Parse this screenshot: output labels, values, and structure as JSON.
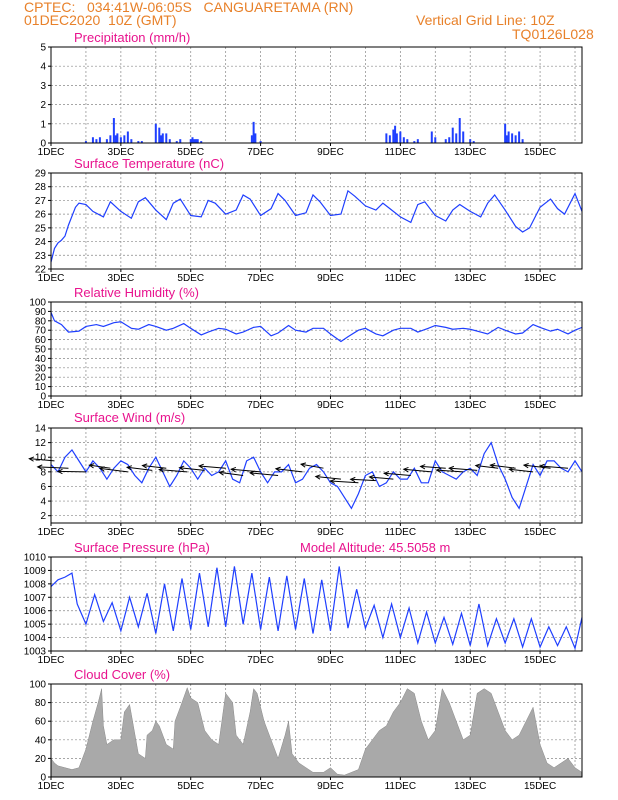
{
  "header": {
    "line1": "CPTEC:   034:41W-06:05S   CANGUARETAMA (RN)",
    "line2": "01DEC2020  10Z (GMT)",
    "grid_note": "Vertical Grid Line: 10Z",
    "code": "TQ0126L028",
    "title_color": "#e8812a"
  },
  "x_ticks": [
    "1DEC",
    "3DEC",
    "5DEC",
    "7DEC",
    "9DEC",
    "11DEC",
    "13DEC",
    "15DEC"
  ],
  "x_day_labels": [
    1,
    3,
    5,
    7,
    9,
    11,
    13,
    15
  ],
  "x_range_days": [
    1,
    16.2
  ],
  "panels": [
    {
      "id": "precip",
      "title": "Precipitation (mm/h)",
      "type": "bar",
      "ylim": [
        0,
        5
      ],
      "y_ticks": [
        "0",
        "1",
        "2",
        "3",
        "4",
        "5"
      ],
      "y_tick_values": [
        0,
        1,
        2,
        3,
        4,
        5
      ],
      "color": "#1f3fff",
      "chart_data": {
        "type": "bar",
        "title": "Precipitation (mm/h)",
        "ylim": [
          0,
          5
        ],
        "x_day": [
          2.0,
          2.2,
          2.3,
          2.4,
          2.6,
          2.7,
          2.8,
          2.85,
          2.9,
          3.0,
          3.1,
          3.2,
          3.3,
          3.5,
          3.6,
          4.0,
          4.1,
          4.15,
          4.2,
          4.3,
          4.4,
          4.6,
          4.7,
          5.0,
          5.05,
          5.1,
          5.15,
          5.2,
          5.3,
          6.75,
          6.8,
          6.85,
          7.0,
          10.6,
          10.7,
          10.8,
          10.85,
          10.9,
          11.0,
          11.1,
          11.2,
          11.4,
          11.5,
          11.9,
          12.0,
          12.3,
          12.4,
          12.5,
          12.6,
          12.7,
          12.8,
          13.0,
          13.1,
          14.0,
          14.05,
          14.1,
          14.2,
          14.3,
          14.4,
          14.5
        ],
        "values": [
          0.1,
          0.3,
          0.2,
          0.3,
          0.2,
          0.4,
          1.3,
          0.4,
          0.5,
          0.3,
          0.4,
          0.6,
          0.2,
          0.1,
          0.1,
          1.0,
          0.8,
          0.4,
          0.5,
          0.5,
          0.2,
          0.1,
          0.2,
          0.2,
          0.3,
          0.2,
          0.2,
          0.2,
          0.1,
          0.4,
          1.1,
          0.5,
          0.1,
          0.5,
          0.4,
          0.7,
          0.9,
          0.5,
          0.6,
          0.3,
          0.2,
          0.1,
          0.2,
          0.6,
          0.3,
          0.2,
          0.3,
          0.8,
          0.5,
          1.3,
          0.6,
          0.2,
          0.1,
          1.0,
          0.4,
          0.6,
          0.5,
          0.4,
          0.6,
          0.2
        ]
      }
    },
    {
      "id": "temp",
      "title": "Surface Temperature (nC)",
      "type": "line",
      "ylim": [
        22,
        29
      ],
      "y_ticks": [
        "22",
        "23",
        "24",
        "25",
        "26",
        "27",
        "28",
        "29"
      ],
      "y_tick_values": [
        22,
        23,
        24,
        25,
        26,
        27,
        28,
        29
      ],
      "color": "#1f3fff",
      "chart_data": {
        "type": "line",
        "title": "Surface Temperature (nC)",
        "ylim": [
          22,
          29
        ],
        "x": [
          1.0,
          1.1,
          1.2,
          1.3,
          1.4,
          1.5,
          1.7,
          1.8,
          2.0,
          2.2,
          2.5,
          2.7,
          3.0,
          3.3,
          3.5,
          3.7,
          4.0,
          4.3,
          4.5,
          4.7,
          5.0,
          5.3,
          5.5,
          5.7,
          6.0,
          6.3,
          6.5,
          6.7,
          7.0,
          7.3,
          7.5,
          7.7,
          8.0,
          8.3,
          8.5,
          8.7,
          9.0,
          9.3,
          9.5,
          9.7,
          10.0,
          10.3,
          10.5,
          10.7,
          11.0,
          11.3,
          11.5,
          11.7,
          12.0,
          12.3,
          12.5,
          12.7,
          13.0,
          13.3,
          13.5,
          13.7,
          14.0,
          14.3,
          14.5,
          14.7,
          15.0,
          15.3,
          15.5,
          15.7,
          16.0,
          16.2
        ],
        "values": [
          22.5,
          23.5,
          23.9,
          24.1,
          24.4,
          25.2,
          26.5,
          26.8,
          26.7,
          26.2,
          25.8,
          26.9,
          26.2,
          25.7,
          26.9,
          27.2,
          26.3,
          25.6,
          26.8,
          27.1,
          25.9,
          25.8,
          27.0,
          26.8,
          26.0,
          26.3,
          27.4,
          27.1,
          25.9,
          26.4,
          27.5,
          27.0,
          25.9,
          26.1,
          27.4,
          26.9,
          25.9,
          26.0,
          27.7,
          27.3,
          26.6,
          26.3,
          26.8,
          26.4,
          25.8,
          25.4,
          26.7,
          26.9,
          25.9,
          25.5,
          26.3,
          26.7,
          26.2,
          25.8,
          26.8,
          27.4,
          26.3,
          25.1,
          24.7,
          25.0,
          26.5,
          27.1,
          26.4,
          26.0,
          27.5,
          26.2
        ]
      }
    },
    {
      "id": "rh",
      "title": "Relative Humidity (%)",
      "type": "line",
      "ylim": [
        0,
        100
      ],
      "y_ticks": [
        "0",
        "10",
        "20",
        "30",
        "40",
        "50",
        "60",
        "70",
        "80",
        "90",
        "100"
      ],
      "y_tick_values": [
        0,
        10,
        20,
        30,
        40,
        50,
        60,
        70,
        80,
        90,
        100
      ],
      "color": "#1f3fff",
      "chart_data": {
        "type": "line",
        "title": "Relative Humidity (%)",
        "ylim": [
          0,
          100
        ],
        "x": [
          1.0,
          1.1,
          1.3,
          1.5,
          1.8,
          2.0,
          2.3,
          2.5,
          2.8,
          3.0,
          3.3,
          3.5,
          3.8,
          4.0,
          4.3,
          4.5,
          4.8,
          5.0,
          5.3,
          5.5,
          5.8,
          6.0,
          6.3,
          6.5,
          6.8,
          7.0,
          7.3,
          7.5,
          7.8,
          8.0,
          8.3,
          8.5,
          8.8,
          9.0,
          9.3,
          9.5,
          9.8,
          10.0,
          10.3,
          10.5,
          10.8,
          11.0,
          11.3,
          11.5,
          11.8,
          12.0,
          12.3,
          12.5,
          12.8,
          13.0,
          13.3,
          13.5,
          13.8,
          14.0,
          14.3,
          14.5,
          14.8,
          15.0,
          15.3,
          15.5,
          15.8,
          16.0,
          16.2
        ],
        "values": [
          89,
          80,
          76,
          68,
          69,
          74,
          76,
          74,
          78,
          79,
          72,
          71,
          76,
          74,
          70,
          72,
          77,
          72,
          65,
          68,
          72,
          71,
          66,
          68,
          73,
          74,
          64,
          67,
          75,
          70,
          68,
          72,
          72,
          66,
          58,
          63,
          70,
          72,
          66,
          64,
          70,
          72,
          72,
          68,
          72,
          75,
          73,
          71,
          72,
          71,
          68,
          66,
          73,
          70,
          66,
          67,
          76,
          73,
          69,
          71,
          66,
          70,
          73
        ]
      }
    },
    {
      "id": "wind",
      "title": "Surface Wind (m/s)",
      "type": "line",
      "ylim": [
        1,
        14
      ],
      "y_ticks": [
        "2",
        "4",
        "6",
        "8",
        "10",
        "12",
        "14"
      ],
      "y_tick_values": [
        2,
        4,
        6,
        8,
        10,
        12,
        14
      ],
      "color": "#1f3fff",
      "arrow_color": "#000000",
      "chart_data": {
        "type": "line",
        "title": "Surface Wind (m/s)",
        "ylim": [
          1,
          14
        ],
        "x": [
          1.0,
          1.2,
          1.4,
          1.6,
          1.8,
          2.0,
          2.2,
          2.4,
          2.6,
          2.8,
          3.0,
          3.2,
          3.4,
          3.6,
          3.8,
          4.0,
          4.2,
          4.4,
          4.6,
          4.8,
          5.0,
          5.2,
          5.4,
          5.6,
          5.8,
          6.0,
          6.2,
          6.4,
          6.6,
          6.8,
          7.0,
          7.2,
          7.4,
          7.6,
          7.8,
          8.0,
          8.2,
          8.4,
          8.6,
          8.8,
          9.0,
          9.2,
          9.4,
          9.6,
          9.8,
          10.0,
          10.2,
          10.4,
          10.6,
          10.8,
          11.0,
          11.2,
          11.4,
          11.6,
          11.8,
          12.0,
          12.2,
          12.4,
          12.6,
          12.8,
          13.0,
          13.2,
          13.4,
          13.6,
          13.8,
          14.0,
          14.2,
          14.4,
          14.6,
          14.8,
          15.0,
          15.2,
          15.4,
          15.6,
          15.8,
          16.0,
          16.2
        ],
        "values": [
          9.0,
          8.0,
          10.0,
          11.0,
          9.5,
          8.0,
          9.5,
          8.5,
          7.0,
          8.5,
          9.5,
          9.0,
          7.5,
          6.5,
          8.5,
          10.0,
          8.0,
          6.0,
          7.5,
          9.5,
          8.5,
          7.0,
          8.5,
          7.5,
          8.0,
          9.5,
          7.0,
          6.5,
          9.5,
          10.0,
          8.0,
          6.5,
          8.0,
          8.0,
          9.0,
          6.5,
          7.0,
          8.5,
          9.0,
          8.0,
          6.5,
          6.0,
          4.5,
          3.0,
          5.0,
          7.5,
          8.0,
          6.0,
          6.5,
          8.0,
          7.0,
          7.0,
          8.5,
          6.5,
          6.5,
          9.5,
          8.0,
          7.5,
          7.0,
          8.0,
          8.5,
          7.5,
          10.5,
          12.0,
          9.0,
          7.0,
          4.5,
          3.0,
          6.0,
          9.0,
          7.5,
          9.5,
          9.5,
          8.5,
          8.0,
          9.5,
          8.0
        ],
        "arrow_x": [
          1.1,
          1.5,
          2.0,
          2.7,
          3.2,
          3.9,
          4.3,
          4.9,
          5.4,
          6.0,
          6.5,
          7.0,
          7.5,
          8.2,
          8.8,
          9.3,
          9.8,
          10.3,
          10.8,
          11.3,
          11.9,
          12.3,
          12.8,
          13.2,
          13.8,
          14.3,
          14.8,
          15.3,
          15.8
        ],
        "arrow_y": [
          9.5,
          8.5,
          8.0,
          8.5,
          8.0,
          8.2,
          8.5,
          8.0,
          8.2,
          8.5,
          7.5,
          8.0,
          7.5,
          8.0,
          8.5,
          7.0,
          6.5,
          6.8,
          7.0,
          7.5,
          8.0,
          8.5,
          8.0,
          8.2,
          8.5,
          8.5,
          8.0,
          8.5,
          8.5
        ],
        "arrow_u": [
          -1.8,
          -2.2,
          -2.0,
          -1.5,
          -2.0,
          -1.8,
          -1.7,
          -2.0,
          -1.8,
          -1.9,
          -1.7,
          -2.1,
          -2.0,
          -1.9,
          -1.6,
          -1.8,
          -2.0,
          -1.8,
          -1.7,
          -1.9,
          -2.0,
          -1.8,
          -1.9,
          -2.0,
          -1.6,
          -1.8,
          -1.7,
          -1.9,
          -2.0
        ],
        "arrow_v": [
          0.5,
          0.3,
          0.1,
          0.7,
          0.8,
          0.7,
          0.6,
          0.5,
          0.6,
          0.5,
          0.7,
          0.6,
          0.6,
          0.7,
          0.9,
          0.6,
          0.4,
          0.3,
          0.5,
          0.5,
          0.6,
          0.4,
          0.4,
          0.5,
          0.6,
          0.7,
          0.6,
          0.7,
          0.5
        ]
      }
    },
    {
      "id": "pressure",
      "title": "Surface Pressure (hPa)",
      "subtitle": "Model Altitude: 45.5058  m",
      "type": "line",
      "ylim": [
        1003,
        1010
      ],
      "y_ticks": [
        "1003",
        "1004",
        "1005",
        "1006",
        "1007",
        "1008",
        "1009",
        "1010"
      ],
      "y_tick_values": [
        1003,
        1004,
        1005,
        1006,
        1007,
        1008,
        1009,
        1010
      ],
      "color": "#1f3fff",
      "chart_data": {
        "type": "line",
        "title": "Surface Pressure (hPa)",
        "ylim": [
          1003,
          1010
        ],
        "x": [
          1.0,
          1.2,
          1.4,
          1.6,
          1.75,
          2.0,
          2.25,
          2.5,
          2.75,
          3.0,
          3.25,
          3.5,
          3.75,
          4.0,
          4.25,
          4.5,
          4.75,
          5.0,
          5.25,
          5.5,
          5.75,
          6.0,
          6.25,
          6.5,
          6.75,
          7.0,
          7.25,
          7.5,
          7.75,
          8.0,
          8.25,
          8.5,
          8.75,
          9.0,
          9.25,
          9.5,
          9.75,
          10.0,
          10.25,
          10.5,
          10.75,
          11.0,
          11.25,
          11.5,
          11.75,
          12.0,
          12.25,
          12.5,
          12.75,
          13.0,
          13.25,
          13.5,
          13.75,
          14.0,
          14.25,
          14.5,
          14.75,
          15.0,
          15.25,
          15.5,
          15.75,
          16.0,
          16.2
        ],
        "values": [
          1007.8,
          1008.3,
          1008.5,
          1008.8,
          1006.5,
          1005.0,
          1007.2,
          1005.2,
          1006.6,
          1004.5,
          1007.0,
          1004.8,
          1007.3,
          1004.3,
          1008.0,
          1004.5,
          1008.4,
          1004.6,
          1008.8,
          1004.8,
          1009.2,
          1004.8,
          1009.3,
          1005.0,
          1008.8,
          1004.6,
          1008.5,
          1004.5,
          1008.6,
          1004.6,
          1008.4,
          1004.3,
          1008.3,
          1004.5,
          1009.3,
          1004.7,
          1007.6,
          1004.7,
          1006.4,
          1004.0,
          1006.5,
          1004.0,
          1006.2,
          1003.6,
          1005.9,
          1003.6,
          1005.5,
          1003.5,
          1005.8,
          1003.4,
          1006.5,
          1003.4,
          1005.4,
          1003.6,
          1005.4,
          1003.3,
          1005.4,
          1003.3,
          1004.8,
          1003.4,
          1004.8,
          1003.2,
          1005.5
        ]
      }
    },
    {
      "id": "cloud",
      "title": "Cloud Cover (%)",
      "type": "area",
      "ylim": [
        0,
        100
      ],
      "y_ticks": [
        "0",
        "20",
        "40",
        "60",
        "80",
        "100"
      ],
      "y_tick_values": [
        0,
        20,
        40,
        60,
        80,
        100
      ],
      "color": "#a9a9a9",
      "chart_data": {
        "type": "area",
        "title": "Cloud Cover (%)",
        "ylim": [
          0,
          100
        ],
        "x": [
          1.0,
          1.1,
          1.2,
          1.4,
          1.6,
          1.8,
          1.9,
          2.0,
          2.1,
          2.2,
          2.35,
          2.45,
          2.5,
          2.6,
          2.8,
          3.0,
          3.1,
          3.25,
          3.5,
          3.7,
          3.75,
          3.9,
          4.0,
          4.1,
          4.3,
          4.5,
          4.55,
          4.7,
          4.9,
          5.0,
          5.2,
          5.4,
          5.6,
          5.8,
          6.0,
          6.2,
          6.3,
          6.5,
          6.7,
          6.8,
          6.9,
          7.1,
          7.3,
          7.5,
          7.7,
          7.8,
          7.9,
          8.1,
          8.3,
          8.5,
          8.8,
          9.0,
          9.2,
          9.4,
          9.6,
          9.8,
          10.0,
          10.2,
          10.4,
          10.6,
          10.8,
          11.0,
          11.2,
          11.4,
          11.6,
          11.8,
          12.0,
          12.2,
          12.4,
          12.6,
          12.8,
          13.0,
          13.2,
          13.4,
          13.6,
          13.8,
          14.0,
          14.2,
          14.4,
          14.6,
          14.8,
          15.0,
          15.2,
          15.4,
          15.6,
          15.8,
          16.0,
          16.2
        ],
        "values": [
          20,
          15,
          12,
          10,
          8,
          10,
          20,
          30,
          45,
          60,
          80,
          95,
          55,
          35,
          40,
          40,
          70,
          78,
          25,
          20,
          45,
          50,
          60,
          55,
          35,
          30,
          60,
          75,
          96,
          85,
          80,
          50,
          40,
          35,
          90,
          80,
          45,
          35,
          70,
          95,
          90,
          60,
          40,
          20,
          45,
          60,
          25,
          15,
          10,
          5,
          5,
          10,
          3,
          2,
          5,
          8,
          30,
          40,
          50,
          55,
          70,
          80,
          95,
          90,
          60,
          40,
          50,
          95,
          80,
          60,
          40,
          45,
          90,
          95,
          90,
          70,
          50,
          40,
          45,
          60,
          75,
          35,
          15,
          10,
          15,
          20,
          10,
          5
        ]
      }
    }
  ]
}
